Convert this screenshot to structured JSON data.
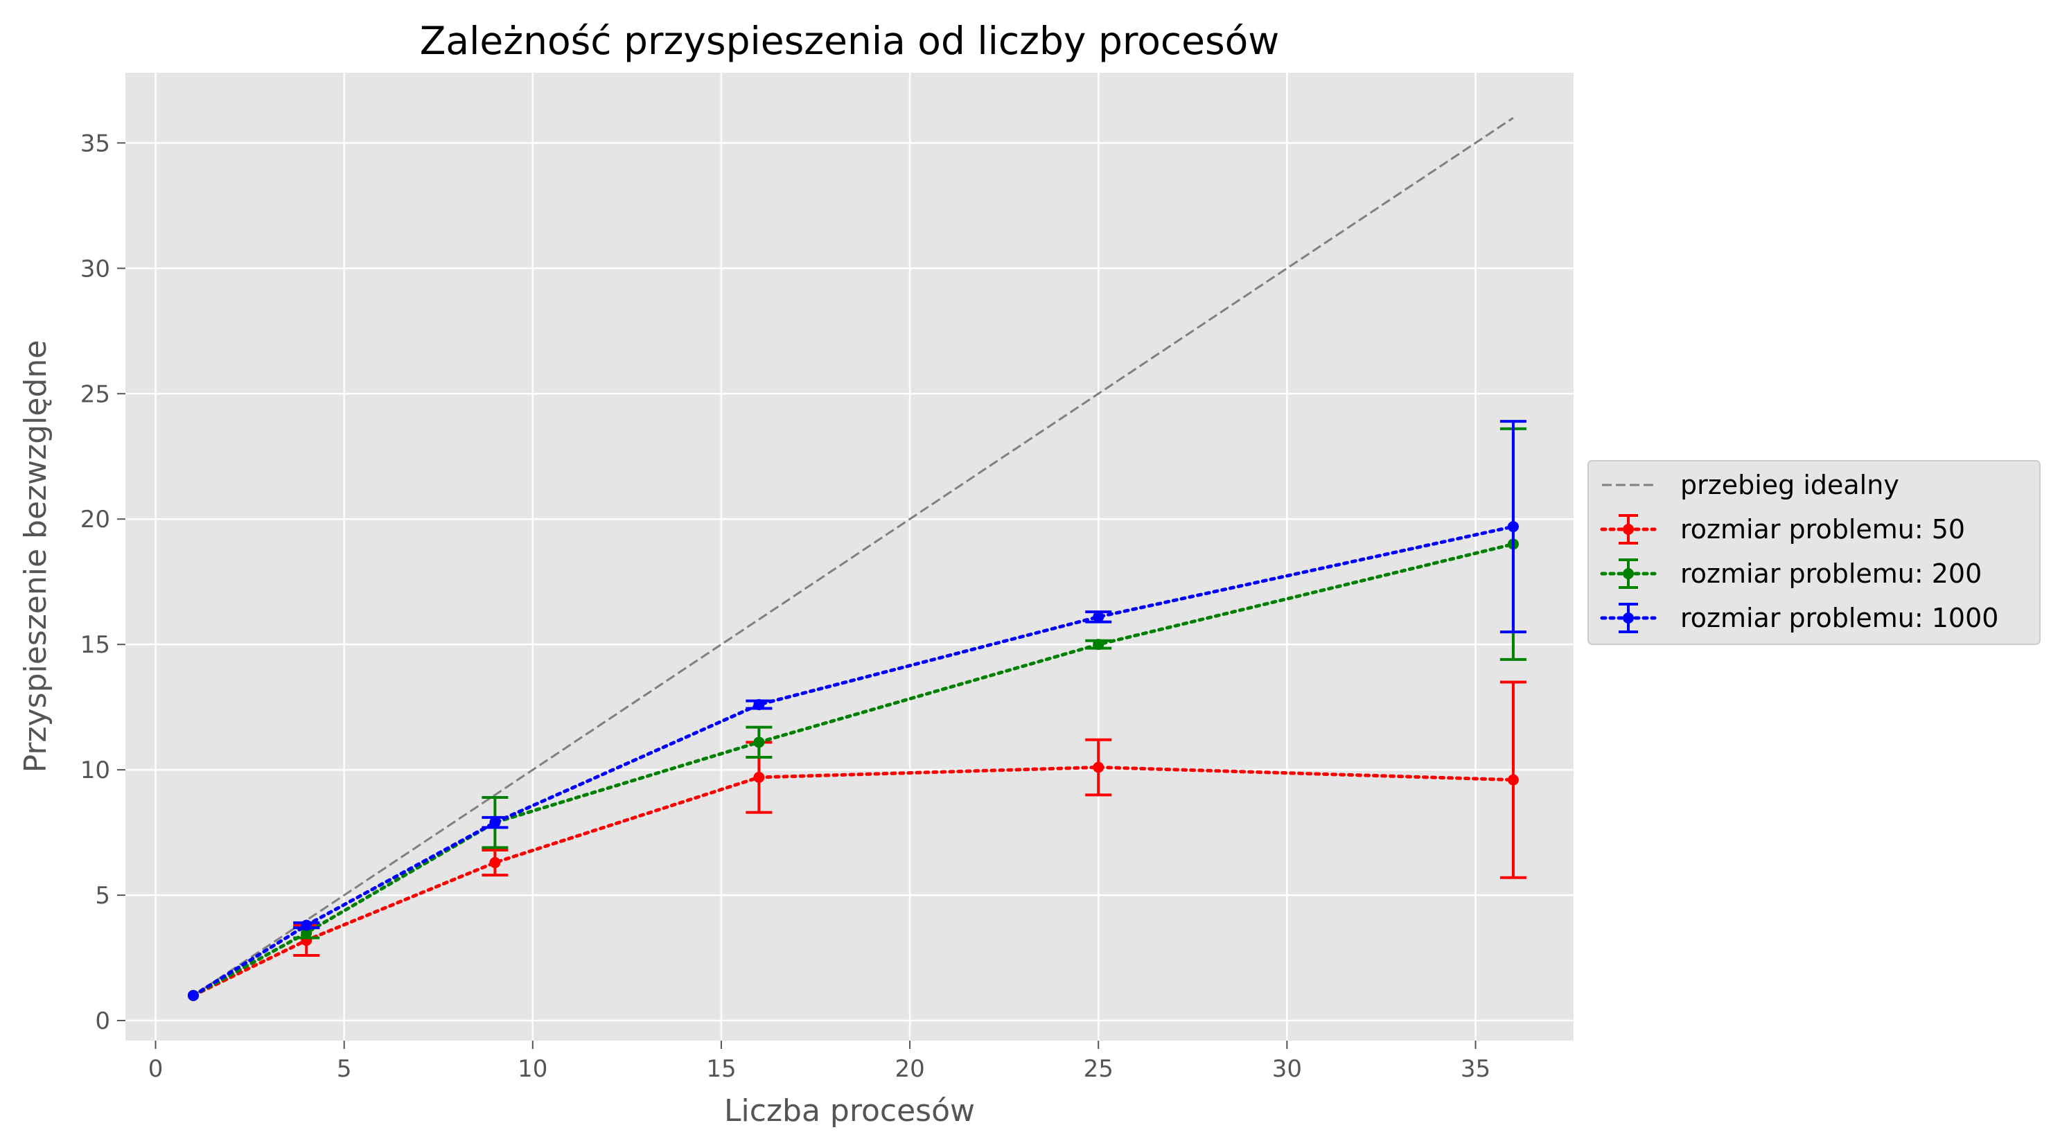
{
  "chart_data": {
    "type": "line",
    "title": "Zależność przyspieszenia od liczby procesów",
    "xlabel": "Liczba procesów",
    "ylabel": "Przyspieszenie bezwzględne",
    "xlim": [
      -0.8,
      37.6
    ],
    "ylim": [
      -0.8,
      37.8
    ],
    "xticks": [
      0,
      5,
      10,
      15,
      20,
      25,
      30,
      35
    ],
    "yticks": [
      0,
      5,
      10,
      15,
      20,
      25,
      30,
      35
    ],
    "grid": true,
    "legend_position": "center-right outside",
    "series": [
      {
        "name": "przebieg idealny",
        "style": "dashed",
        "color": "#808080",
        "x": [
          1,
          36
        ],
        "y": [
          1,
          36
        ]
      },
      {
        "name": "rozmiar problemu: 50",
        "style": "dotted",
        "color": "#ff0000",
        "x": [
          1,
          4,
          9,
          16,
          25,
          36
        ],
        "y": [
          1.0,
          3.2,
          6.3,
          9.7,
          10.1,
          9.6
        ],
        "err": [
          0.0,
          0.6,
          0.5,
          1.4,
          1.1,
          3.9
        ]
      },
      {
        "name": "rozmiar problemu: 200",
        "style": "dotted",
        "color": "#008000",
        "x": [
          1,
          4,
          9,
          16,
          25,
          36
        ],
        "y": [
          1.0,
          3.5,
          7.9,
          11.1,
          15.0,
          19.0
        ],
        "err": [
          0.0,
          0.2,
          1.0,
          0.6,
          0.15,
          4.6
        ]
      },
      {
        "name": "rozmiar problemu: 1000",
        "style": "dotted",
        "color": "#0000ff",
        "x": [
          1,
          4,
          9,
          16,
          25,
          36
        ],
        "y": [
          1.0,
          3.8,
          7.9,
          12.6,
          16.1,
          19.7
        ],
        "err": [
          0.0,
          0.1,
          0.2,
          0.15,
          0.2,
          4.2
        ]
      }
    ]
  }
}
